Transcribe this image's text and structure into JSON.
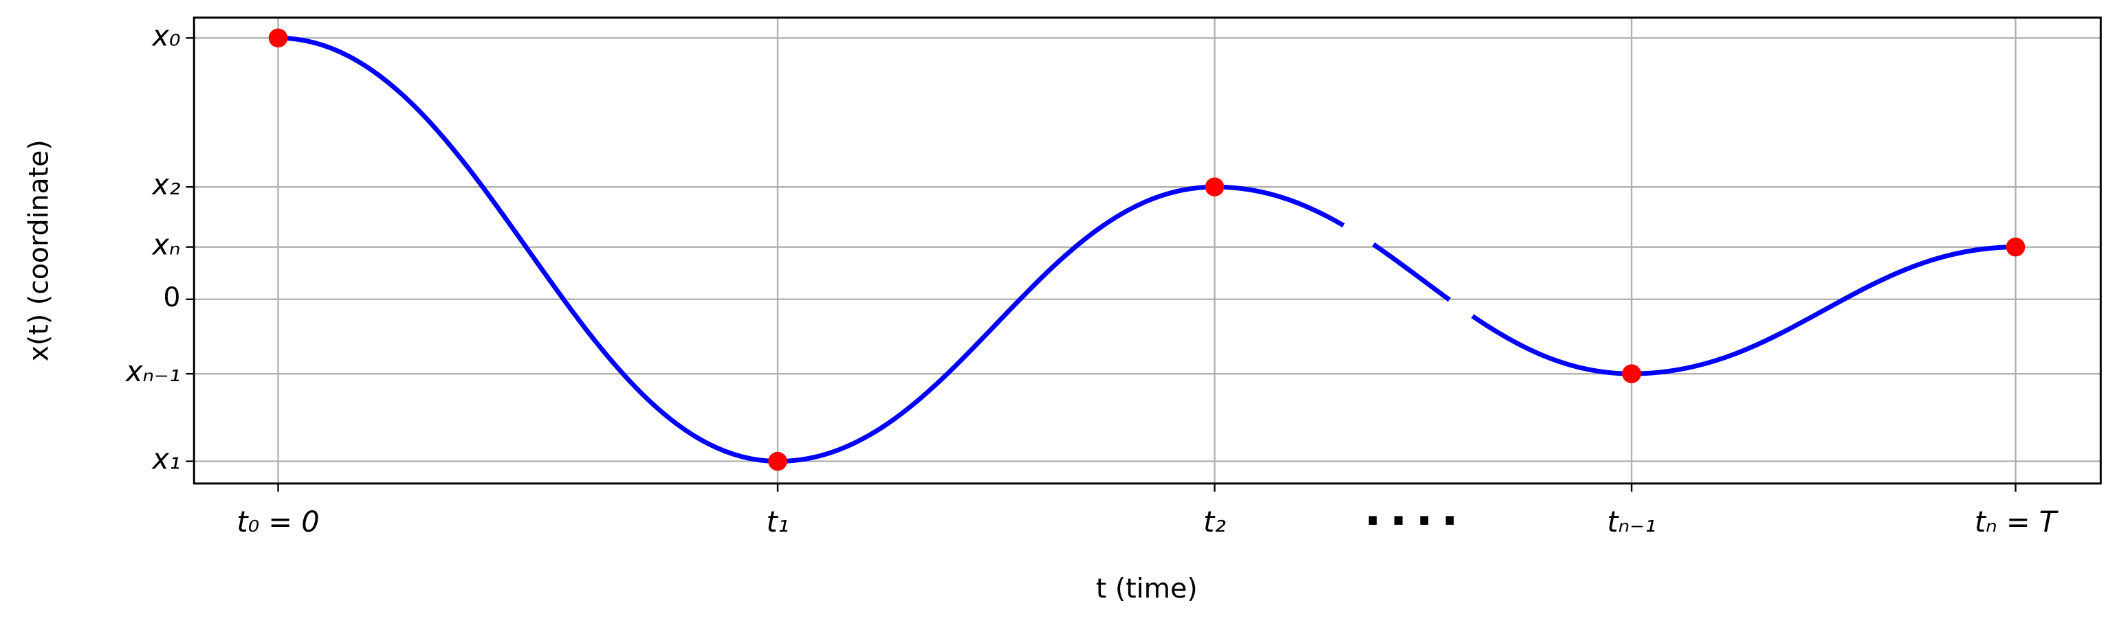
{
  "chart_data": {
    "type": "line",
    "xlabel": "t (time)",
    "ylabel": "x(t) (coordinate)",
    "annotation": "....",
    "x": [
      0,
      2.875,
      5.39,
      7.79,
      10
    ],
    "series": [
      {
        "color": "#0000ff",
        "marker_color": "#ff0000",
        "values": [
          10,
          -6.2,
          4.3,
          -2.85,
          2.0
        ]
      }
    ],
    "xlim": [
      -0.484,
      10.49
    ],
    "ylim": [
      -7.05,
      10.78
    ],
    "xticks": [
      {
        "value": 0,
        "label": "t₀ = 0"
      },
      {
        "value": 2.875,
        "label": "t₁"
      },
      {
        "value": 5.39,
        "label": "t₂"
      },
      {
        "value": 7.79,
        "label": "tₙ₋₁"
      },
      {
        "value": 10,
        "label": "tₙ = T"
      }
    ],
    "yticks": [
      {
        "value": -6.2,
        "label": "x₁"
      },
      {
        "value": -2.85,
        "label": "xₙ₋₁"
      },
      0,
      {
        "value": 2.0,
        "label": "xₙ"
      },
      {
        "value": 4.3,
        "label": "x₂"
      },
      {
        "value": 10,
        "label": "x₀"
      }
    ],
    "grid": true
  }
}
